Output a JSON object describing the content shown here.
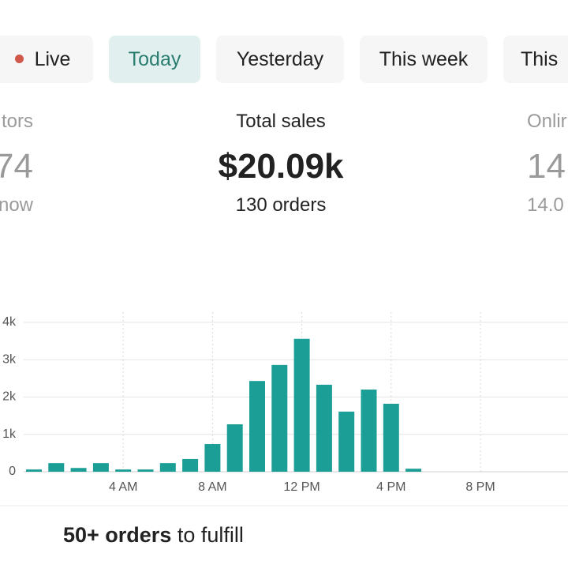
{
  "tabs": [
    {
      "label": "Live"
    },
    {
      "label": "Today"
    },
    {
      "label": "Yesterday"
    },
    {
      "label": "This week"
    },
    {
      "label": "This"
    }
  ],
  "stats": [
    {
      "label": "tors",
      "value": "74",
      "sub": "now"
    },
    {
      "label": "Total sales",
      "value": "$20.09k",
      "sub": "130 orders"
    },
    {
      "label": "Onlir",
      "value": "14",
      "sub": "14.0"
    }
  ],
  "chart_data": {
    "type": "bar",
    "color": "#1a9e96",
    "categories": [
      null,
      null,
      null,
      null,
      "4 AM",
      null,
      null,
      null,
      "8 AM",
      null,
      null,
      null,
      "12 PM",
      null,
      null,
      null,
      "4 PM",
      null,
      null,
      null,
      "8 PM",
      null,
      null,
      null
    ],
    "values": [
      60,
      230,
      100,
      230,
      60,
      60,
      230,
      340,
      740,
      1270,
      2430,
      2860,
      3560,
      2330,
      1610,
      2200,
      1820,
      80,
      0,
      0,
      0,
      0,
      0,
      0
    ],
    "ylim": [
      0,
      4000
    ],
    "yticks": [
      {
        "value": 0,
        "label": "0"
      },
      {
        "value": 1000,
        "label": "1k"
      },
      {
        "value": 2000,
        "label": "2k"
      },
      {
        "value": 3000,
        "label": "3k"
      },
      {
        "value": 4000,
        "label": "4k"
      }
    ],
    "grid": true
  },
  "footer": {
    "bold": "50+ orders",
    "rest": "to fulfill"
  }
}
